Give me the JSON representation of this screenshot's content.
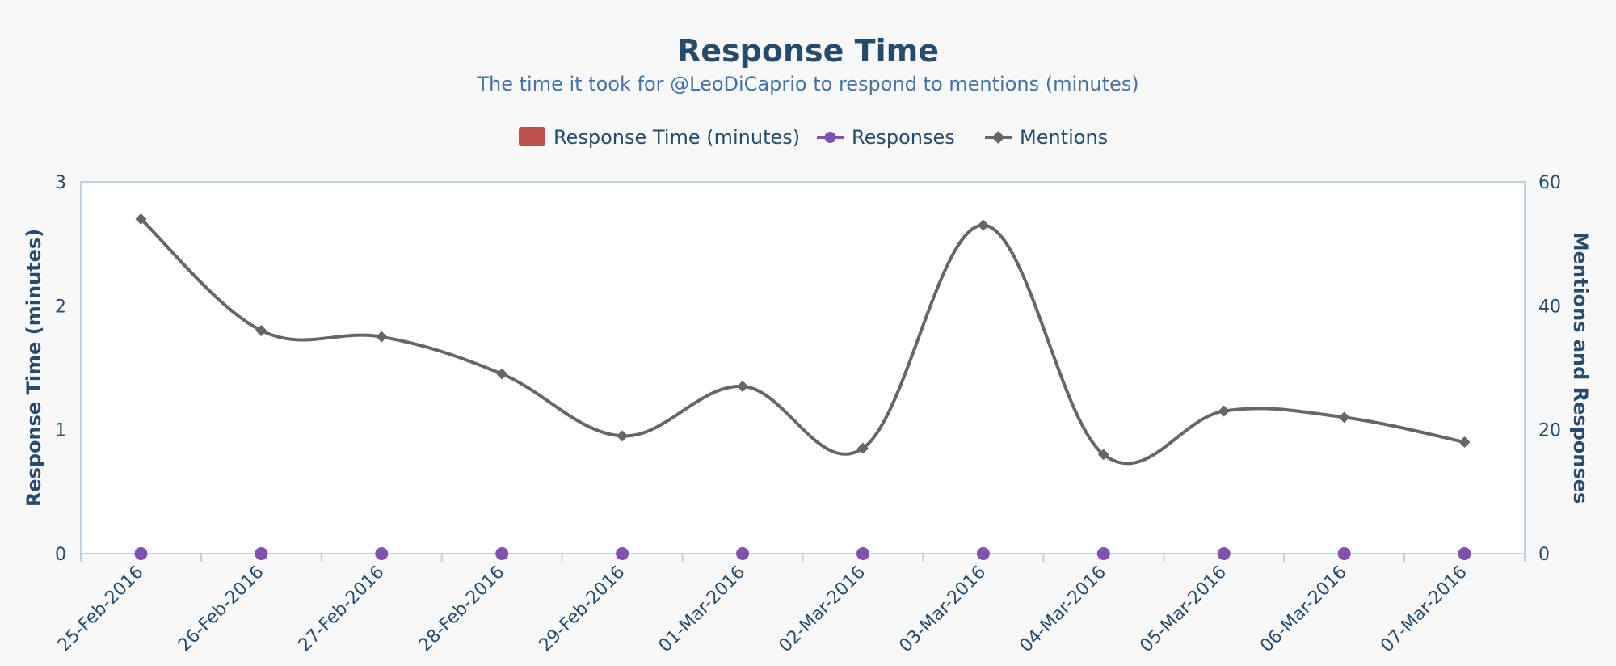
{
  "chart_data": {
    "type": "line",
    "title": "Response Time",
    "subtitle": "The time it took for @LeoDiCaprio to respond to mentions (minutes)",
    "categories": [
      "25-Feb-2016",
      "26-Feb-2016",
      "27-Feb-2016",
      "28-Feb-2016",
      "29-Feb-2016",
      "01-Mar-2016",
      "02-Mar-2016",
      "03-Mar-2016",
      "04-Mar-2016",
      "05-Mar-2016",
      "06-Mar-2016",
      "07-Mar-2016"
    ],
    "y_left": {
      "label": "Response Time (minutes)",
      "range": [
        0,
        3
      ],
      "ticks": [
        "0",
        "1",
        "2",
        "3"
      ]
    },
    "y_right": {
      "label": "Mentions and Responses",
      "range": [
        0,
        60
      ],
      "ticks": [
        "0",
        "20",
        "40",
        "60"
      ]
    },
    "series": [
      {
        "name": "Response Time (minutes)",
        "type": "bar",
        "axis": "left",
        "color": "#c0504d",
        "values": [
          0,
          0,
          0,
          0,
          0,
          0,
          0,
          0,
          0,
          0,
          0,
          0
        ]
      },
      {
        "name": "Responses",
        "type": "line",
        "axis": "right",
        "color": "#8151b0",
        "marker": "circle",
        "values": [
          0,
          0,
          0,
          0,
          0,
          0,
          0,
          0,
          0,
          0,
          0,
          0
        ]
      },
      {
        "name": "Mentions",
        "type": "line",
        "axis": "right",
        "color": "#666666",
        "marker": "diamond",
        "smooth": true,
        "values": [
          54,
          36,
          35,
          29,
          19,
          27,
          17,
          53,
          16,
          23,
          22,
          18
        ]
      }
    ],
    "legend": "top-center",
    "grid": false,
    "colors": {
      "plot_background": "#ffffff",
      "page_background": "#f8f8f8",
      "axis_line": "#c0d0e0"
    }
  }
}
